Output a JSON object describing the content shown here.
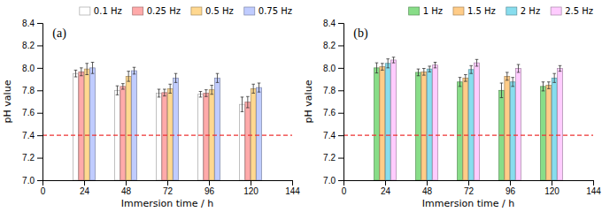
{
  "chart_data": [
    {
      "type": "bar",
      "annotations": [
        "(a)"
      ],
      "x": [
        24,
        48,
        72,
        96,
        120
      ],
      "series": [
        {
          "name": "0.1 Hz",
          "color": "#FFFFFF",
          "values": [
            7.95,
            7.8,
            7.775,
            7.765,
            7.675
          ],
          "errors": [
            0.03,
            0.04,
            0.035,
            0.025,
            0.065
          ]
        },
        {
          "name": "0.25 Hz",
          "color": "#FFAAAA",
          "values": [
            7.965,
            7.835,
            7.78,
            7.775,
            7.695
          ],
          "errors": [
            0.035,
            0.025,
            0.03,
            0.03,
            0.05
          ]
        },
        {
          "name": "0.5 Hz",
          "color": "#FFD890",
          "values": [
            7.99,
            7.925,
            7.815,
            7.805,
            7.815
          ],
          "errors": [
            0.05,
            0.045,
            0.04,
            0.04,
            0.04
          ]
        },
        {
          "name": "0.75 Hz",
          "color": "#C0CCFF",
          "values": [
            8.0,
            7.975,
            7.91,
            7.91,
            7.825
          ],
          "errors": [
            0.05,
            0.03,
            0.04,
            0.04,
            0.04
          ]
        }
      ],
      "reference_line": {
        "value": 7.4,
        "color": "#EE3333",
        "line_style": "dashed"
      },
      "xlim": [
        0,
        144
      ],
      "xticks": [
        0,
        24,
        48,
        72,
        96,
        120,
        144
      ],
      "ylim": [
        7.0,
        8.4
      ],
      "yticks": [
        {
          "value": 7.0,
          "label": "7.0"
        },
        7.2,
        7.4,
        7.6,
        7.8,
        {
          "value": 8.0,
          "label": "8.0"
        },
        8.2,
        8.4
      ],
      "x_label": "Immersion time / h",
      "y_label": "pH value",
      "legend": "top",
      "grid": false
    },
    {
      "type": "bar",
      "annotations": [
        "(b)"
      ],
      "x": [
        24,
        48,
        72,
        96,
        120
      ],
      "series": [
        {
          "name": "1 Hz",
          "color": "#88DD88",
          "values": [
            8.0,
            7.96,
            7.875,
            7.8,
            7.835
          ],
          "errors": [
            0.045,
            0.03,
            0.04,
            0.065,
            0.04
          ]
        },
        {
          "name": "1.5 Hz",
          "color": "#FFCC88",
          "values": [
            8.01,
            7.965,
            7.91,
            7.925,
            7.845
          ],
          "errors": [
            0.03,
            0.03,
            0.03,
            0.035,
            0.03
          ]
        },
        {
          "name": "2 Hz",
          "color": "#88DDEE",
          "values": [
            8.04,
            7.99,
            7.985,
            7.875,
            7.91
          ],
          "errors": [
            0.04,
            0.025,
            0.035,
            0.04,
            0.04
          ]
        },
        {
          "name": "2.5 Hz",
          "color": "#FFCCFF",
          "values": [
            8.07,
            8.025,
            8.045,
            7.995,
            7.995
          ],
          "errors": [
            0.025,
            0.025,
            0.03,
            0.035,
            0.025
          ]
        }
      ],
      "reference_line": {
        "value": 7.4,
        "color": "#EE3333",
        "line_style": "dashed"
      },
      "xlim": [
        0,
        144
      ],
      "xticks": [
        0,
        24,
        48,
        72,
        96,
        120,
        144
      ],
      "ylim": [
        7.0,
        8.4
      ],
      "yticks": [
        {
          "value": 7.0,
          "label": "7.0"
        },
        7.2,
        7.4,
        7.6,
        7.8,
        {
          "value": 8.0,
          "label": "8.0"
        },
        8.2,
        8.4
      ],
      "x_label": "Immersion time / h",
      "y_label": "pH value",
      "legend": "top",
      "grid": false
    }
  ]
}
